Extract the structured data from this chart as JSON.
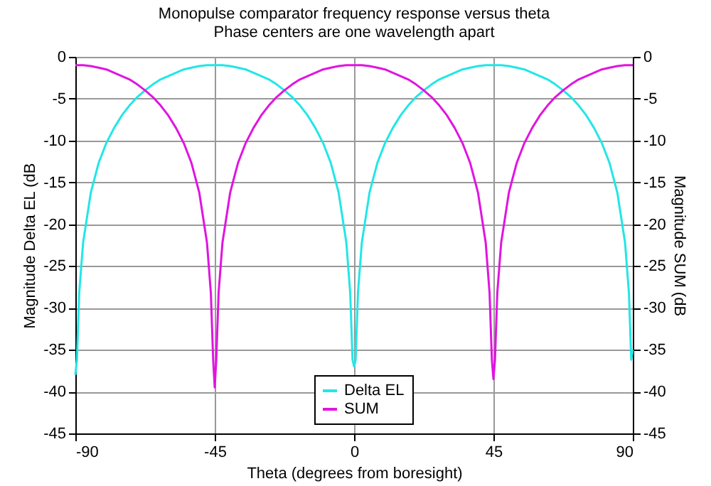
{
  "chart_data": {
    "type": "line",
    "title": "Monopulse comparator frequency response versus theta",
    "subtitle": "Phase centers are one wavelength apart",
    "xlabel": "Theta (degrees from boresight)",
    "ylabel": "Magnitude Delta EL (dB",
    "y2label": "Magnitude SUM (dB",
    "x": [
      -90,
      -89.5,
      -88.75,
      -87.5,
      -85,
      -82.5,
      -80,
      -77.5,
      -75,
      -72.5,
      -70,
      -67.5,
      -65,
      -62.5,
      -60,
      -57.5,
      -55,
      -52.5,
      -50,
      -47.5,
      -46.25,
      -45.5,
      -45,
      -44.5,
      -43.75,
      -42.5,
      -40,
      -37.5,
      -35,
      -32.5,
      -30,
      -27.5,
      -25,
      -22.5,
      -20,
      -17.5,
      -15,
      -12.5,
      -10,
      -7.5,
      -5,
      -2.5,
      -1.25,
      -0.5,
      0,
      0.5,
      1.25,
      2.5,
      5,
      7.5,
      10,
      12.5,
      15,
      17.5,
      20,
      22.5,
      25,
      27.5,
      30,
      32.5,
      35,
      37.5,
      40,
      42.5,
      43.75,
      44.5,
      45,
      45.5,
      46.25,
      47.5,
      50,
      52.5,
      55,
      57.5,
      60,
      62.5,
      65,
      67.5,
      70,
      72.5,
      75,
      77.5,
      80,
      82.5,
      85,
      87.5,
      88.75,
      89.5,
      90
    ],
    "series": [
      {
        "name": "Delta EL",
        "color": "#22e6e6",
        "values": [
          -38,
          -36.2,
          -28.2,
          -22.2,
          -16.2,
          -12.7,
          -10.3,
          -8.5,
          -7,
          -5.8,
          -4.8,
          -4,
          -3.3,
          -2.7,
          -2.3,
          -1.9,
          -1.5,
          -1.3,
          -1.1,
          -1,
          -1,
          -1,
          -1,
          -1,
          -1,
          -1,
          -1.1,
          -1.3,
          -1.5,
          -1.9,
          -2.3,
          -2.7,
          -3.3,
          -4,
          -4.8,
          -5.8,
          -7,
          -8.5,
          -10.3,
          -12.7,
          -16.2,
          -22.2,
          -28.2,
          -36.2,
          -37,
          -36.2,
          -28.2,
          -22.2,
          -16.2,
          -12.7,
          -10.3,
          -8.5,
          -7,
          -5.8,
          -4.8,
          -4,
          -3.3,
          -2.7,
          -2.3,
          -1.9,
          -1.5,
          -1.3,
          -1.1,
          -1,
          -1,
          -1,
          -1,
          -1,
          -1,
          -1,
          -1.1,
          -1.3,
          -1.5,
          -1.9,
          -2.3,
          -2.7,
          -3.3,
          -4,
          -4.8,
          -5.8,
          -7,
          -8.5,
          -10.3,
          -12.7,
          -16.2,
          -22.2,
          -28.2,
          -36.2,
          -35
        ]
      },
      {
        "name": "SUM",
        "color": "#e014e0",
        "axis": "y2",
        "values": [
          -1,
          -1,
          -1,
          -1,
          -1.1,
          -1.3,
          -1.5,
          -1.9,
          -2.3,
          -2.7,
          -3.3,
          -4,
          -4.8,
          -5.8,
          -7,
          -8.5,
          -10.3,
          -12.7,
          -16.2,
          -22.2,
          -28.2,
          -36.2,
          -39.5,
          -36.2,
          -28.2,
          -22.2,
          -16.2,
          -12.7,
          -10.3,
          -8.5,
          -7,
          -5.8,
          -4.8,
          -4,
          -3.3,
          -2.7,
          -2.3,
          -1.9,
          -1.5,
          -1.3,
          -1.1,
          -1,
          -1,
          -1,
          -1,
          -1,
          -1,
          -1,
          -1.1,
          -1.3,
          -1.5,
          -1.9,
          -2.3,
          -2.7,
          -3.3,
          -4,
          -4.8,
          -5.8,
          -7,
          -8.5,
          -10.3,
          -12.7,
          -16.2,
          -22.2,
          -28.2,
          -36.2,
          -38.5,
          -36.2,
          -28.2,
          -22.2,
          -16.2,
          -12.7,
          -10.3,
          -8.5,
          -7,
          -5.8,
          -4.8,
          -4,
          -3.3,
          -2.7,
          -2.3,
          -1.9,
          -1.5,
          -1.3,
          -1.1,
          -1,
          -1,
          -1,
          -1
        ]
      }
    ],
    "xlim": [
      -90,
      90
    ],
    "xticks": [
      -90,
      -45,
      0,
      45,
      90
    ],
    "ylim": [
      -45,
      0
    ],
    "yticks": [
      -45,
      -40,
      -35,
      -30,
      -25,
      -20,
      -15,
      -10,
      -5,
      0
    ],
    "y2lim": [
      -45,
      0
    ],
    "y2ticks": [
      -45,
      -40,
      -35,
      -30,
      -25,
      -20,
      -15,
      -10,
      -5,
      0
    ],
    "grid": true,
    "legend": "bottom",
    "marker": "none",
    "line_style": "solid"
  }
}
